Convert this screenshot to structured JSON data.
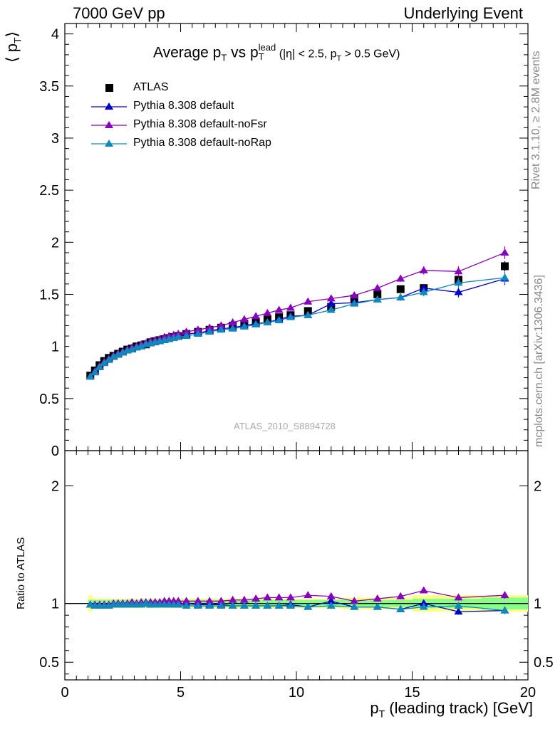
{
  "header": {
    "left": "7000 GeV pp",
    "right": "Underlying Event"
  },
  "title": {
    "main": "Average p",
    "main_sub": "T",
    "vs": " vs p",
    "vs_sub": "T",
    "vs_sup": "lead",
    "cuts": " (|η| < 2.5, p",
    "cuts_sub": "T",
    "cuts_end": " > 0.5 GeV)"
  },
  "side_labels": {
    "rivet": "Rivet 3.1.10, ≥ 2.8M events",
    "mcplots": "mcplots.cern.ch [arXiv:1306.3436]"
  },
  "watermark": "ATLAS_2010_S8894728",
  "axes": {
    "ylabel_top": "⟨ p",
    "ylabel_top_sub": "T",
    "ylabel_top_end": "⟩",
    "ylabel_bottom": "Ratio to ATLAS",
    "xlabel": "p",
    "xlabel_sub": "T",
    "xlabel_end": " (leading track) [GeV]"
  },
  "legend": [
    {
      "key": "atlas",
      "label": "ATLAS"
    },
    {
      "key": "default",
      "label": "Pythia 8.308 default"
    },
    {
      "key": "nofsr",
      "label": "Pythia 8.308 default-noFsr"
    },
    {
      "key": "norap",
      "label": "Pythia 8.308 default-noRap"
    }
  ],
  "colors": {
    "atlas": "#000000",
    "default": "#0000cc",
    "nofsr": "#8800bb",
    "norap": "#1188bb",
    "band_inner": "#88ff88",
    "band_outer": "#ffff88"
  },
  "chart_data": [
    {
      "type": "scatter",
      "panel": "main",
      "xlim": [
        0,
        20
      ],
      "ylim": [
        0,
        4.1
      ],
      "x_ticks": [
        "0",
        "5",
        "10",
        "15",
        "20"
      ],
      "y_ticks": [
        "0",
        "0.5",
        "1",
        "1.5",
        "2",
        "2.5",
        "3",
        "3.5",
        "4"
      ],
      "x": [
        1.1,
        1.3,
        1.5,
        1.7,
        1.9,
        2.1,
        2.3,
        2.5,
        2.7,
        2.9,
        3.1,
        3.3,
        3.5,
        3.7,
        3.9,
        4.1,
        4.3,
        4.5,
        4.7,
        4.9,
        5.25,
        5.75,
        6.25,
        6.75,
        7.25,
        7.75,
        8.25,
        8.75,
        9.25,
        9.75,
        10.5,
        11.5,
        12.5,
        13.5,
        14.5,
        15.5,
        17.0,
        19.0
      ],
      "series": [
        {
          "name": "ATLAS",
          "values": [
            0.72,
            0.77,
            0.82,
            0.86,
            0.89,
            0.91,
            0.93,
            0.95,
            0.97,
            0.98,
            1.0,
            1.01,
            1.02,
            1.04,
            1.05,
            1.06,
            1.07,
            1.08,
            1.09,
            1.1,
            1.12,
            1.14,
            1.16,
            1.18,
            1.2,
            1.22,
            1.24,
            1.26,
            1.28,
            1.3,
            1.34,
            1.38,
            1.46,
            1.5,
            1.55,
            1.56,
            1.64,
            1.77
          ]
        },
        {
          "name": "Pythia 8.308 default",
          "values": [
            0.71,
            0.76,
            0.8,
            0.84,
            0.87,
            0.9,
            0.92,
            0.94,
            0.96,
            0.98,
            0.99,
            1.01,
            1.02,
            1.03,
            1.05,
            1.06,
            1.07,
            1.08,
            1.09,
            1.09,
            1.12,
            1.13,
            1.15,
            1.17,
            1.18,
            1.2,
            1.22,
            1.23,
            1.26,
            1.29,
            1.3,
            1.41,
            1.42,
            1.45,
            1.47,
            1.56,
            1.52,
            1.65
          ]
        },
        {
          "name": "Pythia 8.308 default-noFsr",
          "values": [
            0.71,
            0.76,
            0.81,
            0.85,
            0.88,
            0.91,
            0.93,
            0.95,
            0.97,
            0.99,
            1.0,
            1.02,
            1.03,
            1.05,
            1.06,
            1.07,
            1.09,
            1.1,
            1.11,
            1.12,
            1.14,
            1.16,
            1.18,
            1.2,
            1.23,
            1.26,
            1.29,
            1.32,
            1.35,
            1.37,
            1.43,
            1.46,
            1.49,
            1.56,
            1.65,
            1.73,
            1.72,
            1.9
          ]
        },
        {
          "name": "Pythia 8.308 default-noRap",
          "values": [
            0.71,
            0.75,
            0.8,
            0.84,
            0.87,
            0.9,
            0.92,
            0.94,
            0.96,
            0.97,
            0.99,
            1.0,
            1.02,
            1.03,
            1.04,
            1.05,
            1.06,
            1.07,
            1.08,
            1.09,
            1.1,
            1.12,
            1.14,
            1.16,
            1.17,
            1.19,
            1.21,
            1.23,
            1.25,
            1.28,
            1.3,
            1.35,
            1.41,
            1.45,
            1.47,
            1.52,
            1.61,
            1.66
          ]
        }
      ]
    },
    {
      "type": "line",
      "panel": "ratio",
      "xlim": [
        0,
        20
      ],
      "ylim": [
        0.35,
        2.3
      ],
      "y_ticks": [
        "0.5",
        "1",
        "2"
      ],
      "ylabel": "Ratio to ATLAS",
      "xlabel": "pT (leading track) [GeV]",
      "x": [
        1.1,
        1.3,
        1.5,
        1.7,
        1.9,
        2.1,
        2.3,
        2.5,
        2.7,
        2.9,
        3.1,
        3.3,
        3.5,
        3.7,
        3.9,
        4.1,
        4.3,
        4.5,
        4.7,
        4.9,
        5.25,
        5.75,
        6.25,
        6.75,
        7.25,
        7.75,
        8.25,
        8.75,
        9.25,
        9.75,
        10.5,
        11.5,
        12.5,
        13.5,
        14.5,
        15.5,
        17.0,
        19.0
      ],
      "series": [
        {
          "name": "Pythia 8.308 default",
          "values": [
            0.99,
            0.98,
            0.98,
            0.98,
            0.98,
            0.99,
            0.99,
            0.99,
            0.99,
            1.0,
            0.99,
            1.0,
            1.0,
            0.99,
            1.0,
            1.0,
            1.0,
            1.0,
            1.0,
            0.99,
            1.0,
            0.99,
            0.99,
            0.99,
            0.98,
            0.98,
            0.98,
            0.98,
            0.98,
            0.99,
            0.97,
            1.02,
            0.97,
            0.97,
            0.95,
            1.0,
            0.93,
            0.94
          ]
        },
        {
          "name": "Pythia 8.308 default-noFsr",
          "values": [
            0.99,
            0.99,
            0.99,
            0.99,
            0.99,
            1.0,
            1.0,
            1.0,
            1.0,
            1.01,
            1.0,
            1.01,
            1.01,
            1.01,
            1.01,
            1.01,
            1.02,
            1.02,
            1.02,
            1.02,
            1.02,
            1.02,
            1.02,
            1.02,
            1.03,
            1.03,
            1.04,
            1.05,
            1.05,
            1.05,
            1.07,
            1.06,
            1.02,
            1.04,
            1.06,
            1.11,
            1.05,
            1.07
          ]
        },
        {
          "name": "Pythia 8.308 default-noRap",
          "values": [
            0.99,
            0.98,
            0.98,
            0.98,
            0.98,
            0.99,
            0.99,
            0.99,
            0.99,
            0.99,
            0.99,
            0.99,
            1.0,
            0.99,
            0.99,
            0.99,
            0.99,
            0.99,
            0.99,
            0.99,
            0.98,
            0.98,
            0.98,
            0.98,
            0.98,
            0.98,
            0.98,
            0.98,
            0.98,
            0.98,
            0.97,
            0.98,
            0.97,
            0.97,
            0.95,
            0.97,
            0.98,
            0.94
          ]
        }
      ],
      "atlas_band_inner": [
        0.03,
        0.03,
        0.03,
        0.03,
        0.03,
        0.03,
        0.03,
        0.03,
        0.03,
        0.03,
        0.03,
        0.03,
        0.03,
        0.03,
        0.03,
        0.03,
        0.03,
        0.03,
        0.03,
        0.03,
        0.03,
        0.03,
        0.03,
        0.03,
        0.03,
        0.03,
        0.03,
        0.03,
        0.03,
        0.03,
        0.03,
        0.03,
        0.03,
        0.03,
        0.03,
        0.04,
        0.04,
        0.05
      ],
      "atlas_band_outer": [
        0.07,
        0.04,
        0.04,
        0.04,
        0.04,
        0.04,
        0.04,
        0.04,
        0.04,
        0.04,
        0.04,
        0.04,
        0.04,
        0.04,
        0.04,
        0.04,
        0.04,
        0.04,
        0.04,
        0.04,
        0.04,
        0.04,
        0.04,
        0.04,
        0.04,
        0.04,
        0.04,
        0.04,
        0.04,
        0.04,
        0.04,
        0.04,
        0.05,
        0.05,
        0.05,
        0.07,
        0.07,
        0.07
      ]
    }
  ]
}
